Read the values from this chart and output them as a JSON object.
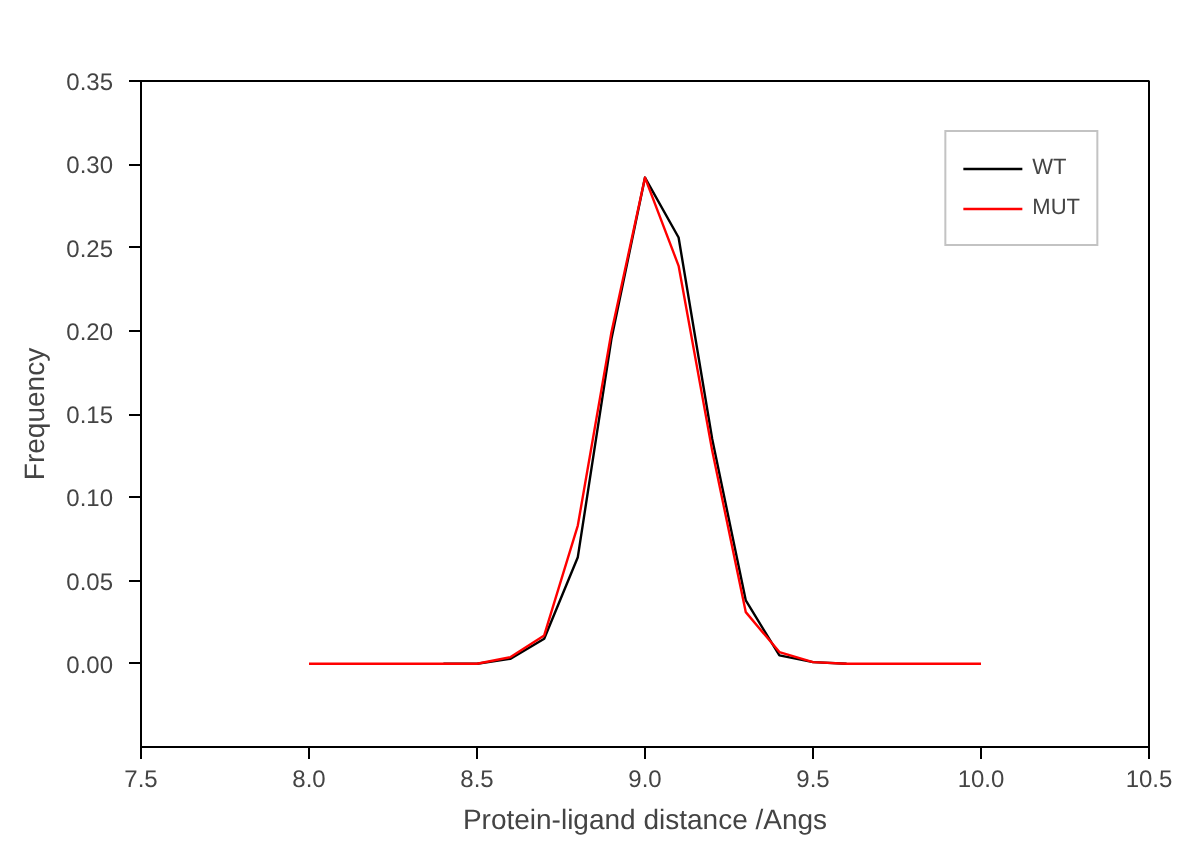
{
  "chart_data": {
    "type": "line",
    "xlabel": "Protein-ligand distance /Angs",
    "ylabel": "Frequency",
    "x": [
      8.0,
      8.1,
      8.2,
      8.3,
      8.4,
      8.5,
      8.6,
      8.7,
      8.8,
      8.9,
      9.0,
      9.1,
      9.2,
      9.3,
      9.4,
      9.5,
      9.6,
      9.7,
      9.8,
      9.9,
      10.0
    ],
    "series": [
      {
        "name": "WT",
        "color": "#000000",
        "values": [
          null,
          null,
          null,
          null,
          0,
          0,
          0.003,
          0.015,
          0.064,
          0.195,
          0.292,
          0.256,
          0.135,
          0.038,
          0.005,
          0.001,
          0,
          null,
          null,
          null,
          null
        ]
      },
      {
        "name": "MUT",
        "color": "#ff0000",
        "values": [
          0,
          0,
          0,
          0,
          0,
          0,
          0.004,
          0.017,
          0.083,
          0.199,
          0.292,
          0.239,
          0.128,
          0.031,
          0.007,
          0.001,
          0,
          0,
          0,
          0,
          0
        ]
      }
    ],
    "xlim": [
      7.5,
      10.5
    ],
    "xticks": [
      7.5,
      {
        "value": 8,
        "label": "8.0"
      },
      8.5,
      {
        "value": 9,
        "label": "9.0"
      },
      9.5,
      {
        "value": 10,
        "label": "10.0"
      },
      10.5
    ],
    "ylim": [
      -0.05,
      0.35
    ],
    "yticks": [
      {
        "value": 0,
        "label": "0.00"
      },
      0.05,
      {
        "value": 0.1,
        "label": "0.10"
      },
      0.15,
      {
        "value": 0.2,
        "label": "0.20"
      },
      0.25,
      {
        "value": 0.3,
        "label": "0.30"
      },
      0.35
    ],
    "grid": false,
    "legend": "top right",
    "marker": "none",
    "line_style": "solid"
  }
}
